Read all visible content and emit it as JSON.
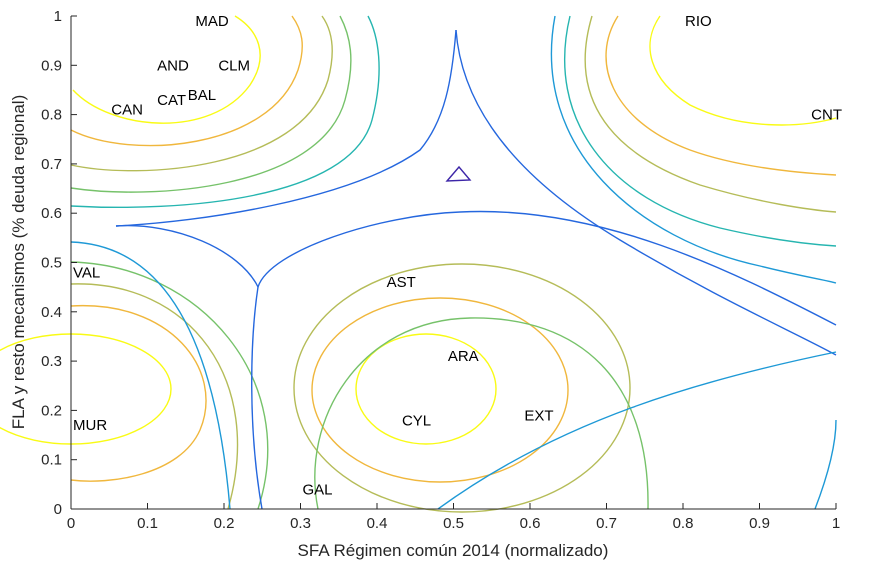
{
  "chart_data": {
    "type": "contour",
    "title": "",
    "xlabel": "SFA Régimen común 2014 (normalizado)",
    "ylabel": "FLA y resto mecanismos (% deuda regional)",
    "xlim": [
      0,
      1
    ],
    "ylim": [
      0,
      1
    ],
    "xticks": [
      "0",
      "0.1",
      "0.2",
      "0.3",
      "0.4",
      "0.5",
      "0.6",
      "0.7",
      "0.8",
      "0.9",
      "1"
    ],
    "yticks": [
      "0",
      "0.1",
      "0.2",
      "0.3",
      "0.4",
      "0.5",
      "0.6",
      "0.7",
      "0.8",
      "0.9",
      "1"
    ],
    "grid": false,
    "colors": {
      "axis": "#262626",
      "level_colors": [
        "#3d26a8",
        "#2567de",
        "#1e99d6",
        "#26b5b0",
        "#76c26a",
        "#b5bc58",
        "#f0b73d",
        "#f2d829",
        "#f9fb15"
      ]
    },
    "points": [
      {
        "label": "MAD",
        "x": 0.16,
        "y": 0.99
      },
      {
        "label": "RIO",
        "x": 0.8,
        "y": 0.99
      },
      {
        "label": "AND",
        "x": 0.11,
        "y": 0.9
      },
      {
        "label": "CLM",
        "x": 0.19,
        "y": 0.9
      },
      {
        "label": "BAL",
        "x": 0.15,
        "y": 0.84
      },
      {
        "label": "CAT",
        "x": 0.11,
        "y": 0.83
      },
      {
        "label": "CAN",
        "x": 0.05,
        "y": 0.81
      },
      {
        "label": "CNT",
        "x": 1.0,
        "y": 0.8
      },
      {
        "label": "VAL",
        "x": 0.0,
        "y": 0.48
      },
      {
        "label": "AST",
        "x": 0.41,
        "y": 0.46
      },
      {
        "label": "ARA",
        "x": 0.49,
        "y": 0.31
      },
      {
        "label": "EXT",
        "x": 0.59,
        "y": 0.19
      },
      {
        "label": "CYL",
        "x": 0.43,
        "y": 0.18
      },
      {
        "label": "MUR",
        "x": 0.0,
        "y": 0.17
      },
      {
        "label": "GAL",
        "x": 0.3,
        "y": 0.04
      }
    ]
  }
}
